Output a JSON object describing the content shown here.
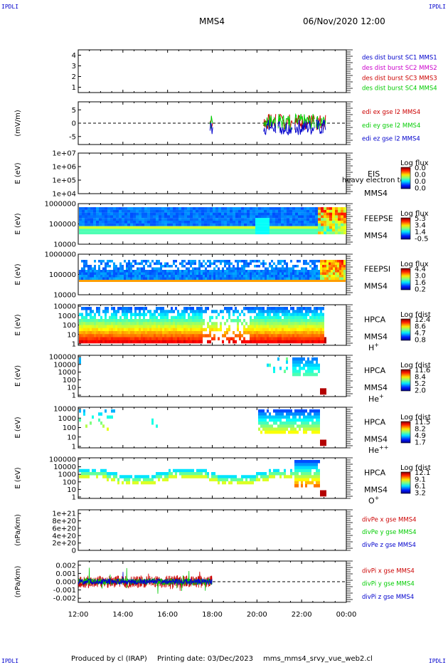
{
  "header": {
    "corner_tl": "IPDLI",
    "corner_tr": "IPDLI",
    "corner_bl": "IPDLI",
    "corner_br": "IPDLI",
    "spacecraft": "MMS4",
    "date": "06/Nov/2020 12:00"
  },
  "footer": {
    "produced": "Produced by cl (IRAP)",
    "printing": "Printing date: 03/Dec/2023",
    "file": "mms_mms4_srvy_vue_web2.cl"
  },
  "colors": {
    "c1": "#0000cc",
    "c2": "#cc00cc",
    "c3": "#cc0000",
    "c4": "#00cc00",
    "ex": "#cc0000",
    "ey": "#00cc00",
    "ez": "#0000cc"
  },
  "chart_data": {
    "type": "multi-panel time series",
    "x": {
      "ticks": [
        "12:00",
        "14:00",
        "16:00",
        "18:00",
        "20:00",
        "22:00",
        "00:00"
      ],
      "range_hours": [
        12,
        24
      ]
    },
    "panels": [
      {
        "id": "dist",
        "type": "line",
        "ylabel": "",
        "yticks": [
          "1",
          "2",
          "3",
          "4"
        ],
        "ylim": [
          0.5,
          4.5
        ],
        "legend": [
          {
            "text": "des dist burst SC1 MMS1",
            "color": "#0000cc"
          },
          {
            "text": "des dist burst SC2 MMS2",
            "color": "#cc00cc"
          },
          {
            "text": "des dist burst SC3 MMS3",
            "color": "#cc0000"
          },
          {
            "text": "des dist burst SC4 MMS4",
            "color": "#00cc00"
          }
        ]
      },
      {
        "id": "edi",
        "type": "line",
        "ylabel": "(mV/m)",
        "yticks": [
          "5",
          "0",
          "-5"
        ],
        "ylim": [
          -8,
          8
        ],
        "legend": [
          {
            "text": "edi ex gse l2 MMS4",
            "color": "#cc0000"
          },
          {
            "text": "edi ey gse l2 MMS4",
            "color": "#00cc00"
          },
          {
            "text": "edi ez gse l2 MMS4",
            "color": "#0000cc"
          }
        ]
      },
      {
        "id": "eis",
        "type": "heatmap",
        "ylabel": "E (eV)",
        "scale": "log",
        "yticks": [
          "1e+07",
          "1e+06",
          "1e+05",
          "1e+04"
        ],
        "instrument": "EIS",
        "sc": "MMS4",
        "species_note": "heavy electron to",
        "colorbar": {
          "title": "Log flux",
          "labels": [
            "0.0",
            "0.0",
            "0.0",
            "0.0"
          ]
        }
      },
      {
        "id": "feepse",
        "type": "heatmap",
        "ylabel": "E (eV)",
        "scale": "log",
        "yticks": [
          "1000000",
          "100000",
          "10000"
        ],
        "instrument": "FEEPSE",
        "sc": "MMS4",
        "colorbar": {
          "title": "Log flux",
          "labels": [
            "5.3",
            "3.4",
            "1.4",
            "-0.5"
          ]
        }
      },
      {
        "id": "feepsi",
        "type": "heatmap",
        "ylabel": "E (eV)",
        "scale": "log",
        "yticks": [
          "1000000",
          "100000",
          "10000"
        ],
        "instrument": "FEEPSI",
        "sc": "MMS4",
        "colorbar": {
          "title": "Log flux",
          "labels": [
            "4.4",
            "3.0",
            "1.6",
            "0.2"
          ]
        }
      },
      {
        "id": "hpca_h",
        "type": "heatmap",
        "ylabel": "E (eV)",
        "scale": "log",
        "yticks": [
          "10000",
          "1000",
          "100",
          "10",
          "1"
        ],
        "instrument": "HPCA",
        "sc": "MMS4",
        "species": "H",
        "charge": "+",
        "colorbar": {
          "title": "Log fdist",
          "labels": [
            "12.4",
            "8.6",
            "4.7",
            "0.8"
          ]
        }
      },
      {
        "id": "hpca_he",
        "type": "heatmap",
        "ylabel": "E (eV)",
        "scale": "log",
        "yticks": [
          "100000",
          "10000",
          "1000",
          "100",
          "10",
          "1"
        ],
        "instrument": "HPCA",
        "sc": "MMS4",
        "species": "He",
        "charge": "+",
        "colorbar": {
          "title": "Log fdist",
          "labels": [
            "11.6",
            "8.4",
            "5.2",
            "2.0"
          ]
        }
      },
      {
        "id": "hpca_hepp",
        "type": "heatmap",
        "ylabel": "E (eV)",
        "scale": "log",
        "yticks": [
          "10000",
          "1000",
          "100",
          "10",
          "1"
        ],
        "instrument": "HPCA",
        "sc": "MMS4",
        "species": "He",
        "charge": "++",
        "colorbar": {
          "title": "Log fdist",
          "labels": [
            "11.5",
            "8.2",
            "4.9",
            "1.7"
          ]
        }
      },
      {
        "id": "hpca_o",
        "type": "heatmap",
        "ylabel": "E (eV)",
        "scale": "log",
        "yticks": [
          "100000",
          "10000",
          "1000",
          "100",
          "10",
          "1"
        ],
        "instrument": "HPCA",
        "sc": "MMS4",
        "species": "O",
        "charge": "+",
        "colorbar": {
          "title": "Log fdist",
          "labels": [
            "12.1",
            "9.1",
            "6.1",
            "3.2"
          ]
        }
      },
      {
        "id": "divpe",
        "type": "line",
        "ylabel": "(nPa/km)",
        "yticks": [
          "1e+21",
          "8e+20",
          "6e+20",
          "4e+20",
          "2e+20",
          "0"
        ],
        "ylim": [
          0,
          1.1e+21
        ],
        "legend": [
          {
            "text": "divPe x gse MMS4",
            "color": "#cc0000"
          },
          {
            "text": "divPe y gse MMS4",
            "color": "#00cc00"
          },
          {
            "text": "divPe z gse MMS4",
            "color": "#0000cc"
          }
        ]
      },
      {
        "id": "divpi",
        "type": "line",
        "ylabel": "(nPa/km)",
        "yticks": [
          "0.002",
          "0.001",
          "0.000",
          "-0.001",
          "-0.002"
        ],
        "ylim": [
          -0.0025,
          0.0025
        ],
        "legend": [
          {
            "text": "divPi x gse MMS4",
            "color": "#cc0000"
          },
          {
            "text": "divPi y gse MMS4",
            "color": "#00cc00"
          },
          {
            "text": "divPi z gse MMS4",
            "color": "#0000cc"
          }
        ]
      }
    ]
  }
}
